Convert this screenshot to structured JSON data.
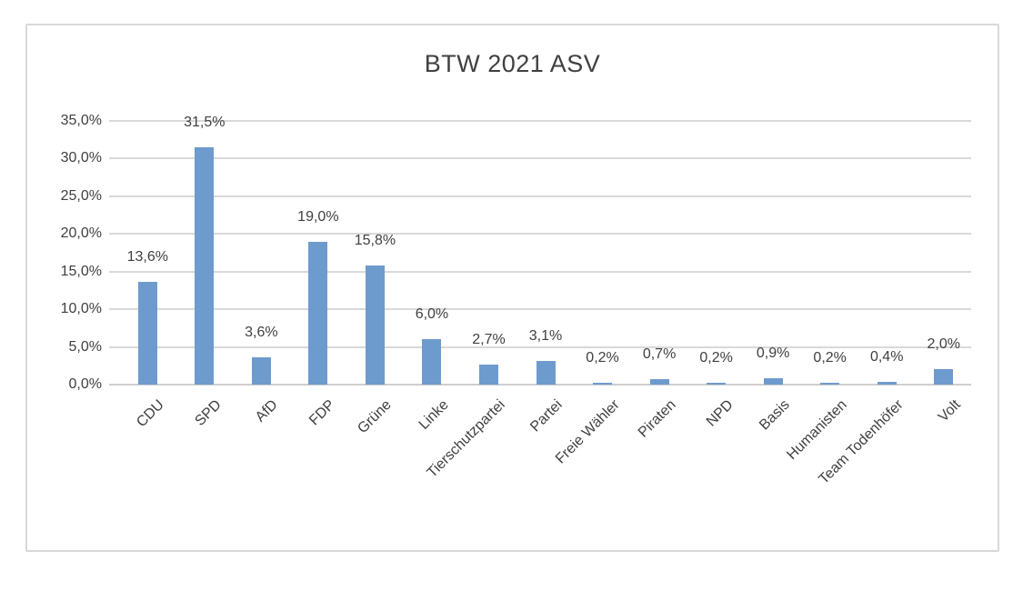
{
  "chart_data": {
    "type": "bar",
    "title": "BTW 2021 ASV",
    "categories": [
      "CDU",
      "SPD",
      "AfD",
      "FDP",
      "Grüne",
      "Linke",
      "Tierschutzpartei",
      "Partei",
      "Freie Wähler",
      "Piraten",
      "NPD",
      "Basis",
      "Humanisten",
      "Team Todenhöfer",
      "Volt"
    ],
    "values": [
      13.6,
      31.5,
      3.6,
      19.0,
      15.8,
      6.0,
      2.7,
      3.1,
      0.2,
      0.7,
      0.2,
      0.9,
      0.2,
      0.4,
      2.0
    ],
    "value_labels": [
      "13,6%",
      "31,5%",
      "3,6%",
      "19,0%",
      "15,8%",
      "6,0%",
      "2,7%",
      "3,1%",
      "0,2%",
      "0,7%",
      "0,2%",
      "0,9%",
      "0,2%",
      "0,4%",
      "2,0%"
    ],
    "y_tick_labels": [
      "0,0%",
      "5,0%",
      "10,0%",
      "15,0%",
      "20,0%",
      "25,0%",
      "30,0%",
      "35,0%"
    ],
    "ylim": [
      0,
      35
    ],
    "y_step": 5,
    "xlabel": "",
    "ylabel": "",
    "grid": true,
    "legend_position": "none",
    "colors": {
      "bar": "#6e9bcd",
      "gridline": "#d9d9d9",
      "axis_line": "#cfcfcf",
      "text": "#404040",
      "frame_border": "#d9d9d9",
      "background": "#ffffff"
    }
  }
}
